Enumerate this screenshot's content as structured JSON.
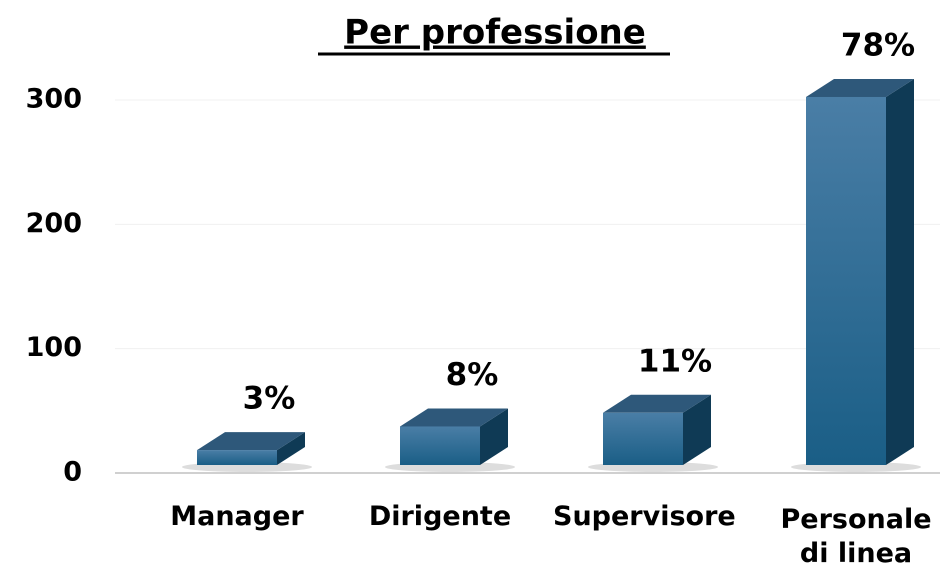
{
  "chart_data": {
    "type": "bar3d",
    "title": "Per professione",
    "categories": [
      "Manager",
      "Dirigente",
      "Supervisore",
      "Personale di linea"
    ],
    "values": [
      12,
      31,
      42,
      296
    ],
    "value_labels": [
      "3%",
      "8%",
      "11%",
      "78%"
    ],
    "color": "#1f5f86",
    "ylim": [
      0,
      300
    ],
    "yticks": [
      0,
      100,
      200,
      300
    ],
    "grid": true
  }
}
